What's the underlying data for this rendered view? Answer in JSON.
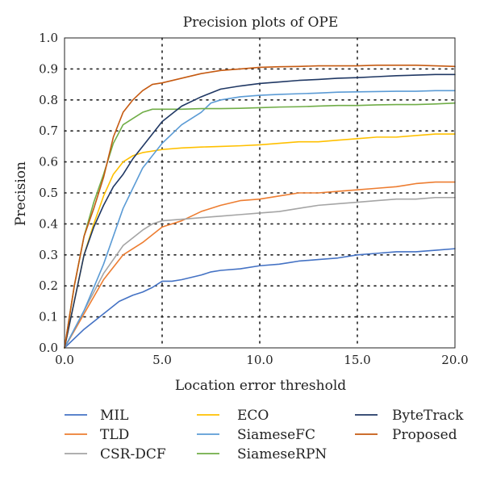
{
  "chart_data": {
    "type": "line",
    "title": "Precision plots of OPE",
    "xlabel": "Location error threshold",
    "ylabel": "Precision",
    "xlim": [
      0,
      20
    ],
    "ylim": [
      0,
      1
    ],
    "grid": true,
    "legend_position": "bottom",
    "x_ticks": [
      0,
      5,
      10,
      15,
      20
    ],
    "x_tick_labels": [
      "0.0",
      "5.0",
      "10.0",
      "15.0",
      "20.0"
    ],
    "y_ticks": [
      0,
      0.1,
      0.2,
      0.3,
      0.4,
      0.5,
      0.6,
      0.7,
      0.8,
      0.9,
      1.0
    ],
    "y_tick_labels": [
      "0.0",
      "0.1",
      "0.2",
      "0.3",
      "0.4",
      "0.5",
      "0.6",
      "0.7",
      "0.8",
      "0.9",
      "1.0"
    ],
    "series": [
      {
        "name": "MIL",
        "color": "#4472c4",
        "points": [
          [
            0,
            0
          ],
          [
            1,
            0.06
          ],
          [
            2,
            0.11
          ],
          [
            2.8,
            0.15
          ],
          [
            3.5,
            0.17
          ],
          [
            4,
            0.18
          ],
          [
            4.5,
            0.195
          ],
          [
            5,
            0.215
          ],
          [
            5.5,
            0.215
          ],
          [
            6,
            0.22
          ],
          [
            7,
            0.235
          ],
          [
            7.5,
            0.245
          ],
          [
            8,
            0.25
          ],
          [
            9,
            0.255
          ],
          [
            10,
            0.265
          ],
          [
            11,
            0.27
          ],
          [
            11.5,
            0.275
          ],
          [
            12,
            0.28
          ],
          [
            13,
            0.285
          ],
          [
            14,
            0.29
          ],
          [
            15,
            0.3
          ],
          [
            16,
            0.305
          ],
          [
            17,
            0.31
          ],
          [
            18,
            0.31
          ],
          [
            19,
            0.315
          ],
          [
            20,
            0.32
          ]
        ]
      },
      {
        "name": "TLD",
        "color": "#ed7d31",
        "points": [
          [
            0,
            0
          ],
          [
            1,
            0.11
          ],
          [
            2,
            0.22
          ],
          [
            3,
            0.3
          ],
          [
            4,
            0.34
          ],
          [
            5,
            0.39
          ],
          [
            6,
            0.41
          ],
          [
            7,
            0.44
          ],
          [
            8,
            0.46
          ],
          [
            9,
            0.475
          ],
          [
            10,
            0.48
          ],
          [
            11,
            0.49
          ],
          [
            12,
            0.5
          ],
          [
            13,
            0.5
          ],
          [
            14,
            0.505
          ],
          [
            15,
            0.51
          ],
          [
            16,
            0.515
          ],
          [
            17,
            0.52
          ],
          [
            18,
            0.53
          ],
          [
            19,
            0.535
          ],
          [
            20,
            0.535
          ]
        ]
      },
      {
        "name": "CSR-DCF",
        "color": "#a5a5a5",
        "points": [
          [
            0,
            0
          ],
          [
            1,
            0.12
          ],
          [
            2,
            0.24
          ],
          [
            3,
            0.33
          ],
          [
            4,
            0.38
          ],
          [
            4.5,
            0.4
          ],
          [
            5,
            0.41
          ],
          [
            6,
            0.415
          ],
          [
            7,
            0.42
          ],
          [
            8,
            0.425
          ],
          [
            9,
            0.43
          ],
          [
            10,
            0.435
          ],
          [
            11,
            0.44
          ],
          [
            12,
            0.45
          ],
          [
            13,
            0.46
          ],
          [
            14,
            0.465
          ],
          [
            15,
            0.47
          ],
          [
            16,
            0.475
          ],
          [
            17,
            0.48
          ],
          [
            18,
            0.48
          ],
          [
            19,
            0.485
          ],
          [
            20,
            0.485
          ]
        ]
      },
      {
        "name": "ECO",
        "color": "#ffc000",
        "points": [
          [
            0,
            0
          ],
          [
            0.5,
            0.15
          ],
          [
            1,
            0.3
          ],
          [
            1.5,
            0.4
          ],
          [
            2,
            0.49
          ],
          [
            2.5,
            0.56
          ],
          [
            3,
            0.6
          ],
          [
            3.5,
            0.62
          ],
          [
            4,
            0.63
          ],
          [
            5,
            0.64
          ],
          [
            6,
            0.645
          ],
          [
            7,
            0.648
          ],
          [
            8,
            0.65
          ],
          [
            9,
            0.652
          ],
          [
            10,
            0.655
          ],
          [
            11,
            0.66
          ],
          [
            12,
            0.665
          ],
          [
            13,
            0.665
          ],
          [
            14,
            0.67
          ],
          [
            15,
            0.675
          ],
          [
            16,
            0.68
          ],
          [
            17,
            0.68
          ],
          [
            18,
            0.685
          ],
          [
            19,
            0.69
          ],
          [
            20,
            0.69
          ]
        ]
      },
      {
        "name": "SiameseFC",
        "color": "#5b9bd5",
        "points": [
          [
            0,
            0
          ],
          [
            1,
            0.12
          ],
          [
            2,
            0.27
          ],
          [
            3,
            0.45
          ],
          [
            4,
            0.58
          ],
          [
            5,
            0.66
          ],
          [
            6,
            0.72
          ],
          [
            7,
            0.76
          ],
          [
            7.5,
            0.79
          ],
          [
            8,
            0.8
          ],
          [
            9,
            0.81
          ],
          [
            10,
            0.815
          ],
          [
            11,
            0.818
          ],
          [
            12,
            0.82
          ],
          [
            13,
            0.822
          ],
          [
            14,
            0.825
          ],
          [
            15,
            0.826
          ],
          [
            16,
            0.827
          ],
          [
            17,
            0.828
          ],
          [
            18,
            0.828
          ],
          [
            19,
            0.83
          ],
          [
            20,
            0.83
          ]
        ]
      },
      {
        "name": "SiameseRPN",
        "color": "#70ad47",
        "points": [
          [
            0,
            0
          ],
          [
            0.5,
            0.2
          ],
          [
            1,
            0.36
          ],
          [
            1.5,
            0.47
          ],
          [
            2,
            0.56
          ],
          [
            2.5,
            0.66
          ],
          [
            3,
            0.72
          ],
          [
            3.5,
            0.74
          ],
          [
            4,
            0.76
          ],
          [
            4.5,
            0.77
          ],
          [
            5,
            0.77
          ],
          [
            6,
            0.77
          ],
          [
            7,
            0.772
          ],
          [
            8,
            0.772
          ],
          [
            9,
            0.773
          ],
          [
            10,
            0.775
          ],
          [
            11,
            0.777
          ],
          [
            12,
            0.778
          ],
          [
            13,
            0.78
          ],
          [
            14,
            0.782
          ],
          [
            15,
            0.782
          ],
          [
            16,
            0.784
          ],
          [
            17,
            0.785
          ],
          [
            18,
            0.785
          ],
          [
            19,
            0.787
          ],
          [
            20,
            0.79
          ]
        ]
      },
      {
        "name": "ByteTrack",
        "color": "#203864",
        "points": [
          [
            0,
            0
          ],
          [
            0.5,
            0.15
          ],
          [
            1,
            0.3
          ],
          [
            1.5,
            0.39
          ],
          [
            2,
            0.46
          ],
          [
            2.5,
            0.52
          ],
          [
            3,
            0.56
          ],
          [
            3.5,
            0.61
          ],
          [
            4,
            0.65
          ],
          [
            4.5,
            0.69
          ],
          [
            5,
            0.73
          ],
          [
            6,
            0.78
          ],
          [
            7,
            0.81
          ],
          [
            8,
            0.835
          ],
          [
            9,
            0.845
          ],
          [
            10,
            0.853
          ],
          [
            11,
            0.858
          ],
          [
            12,
            0.863
          ],
          [
            13,
            0.866
          ],
          [
            14,
            0.87
          ],
          [
            15,
            0.872
          ],
          [
            16,
            0.875
          ],
          [
            17,
            0.878
          ],
          [
            18,
            0.88
          ],
          [
            19,
            0.882
          ],
          [
            20,
            0.882
          ]
        ]
      },
      {
        "name": "Proposed",
        "color": "#c55a11",
        "points": [
          [
            0,
            0
          ],
          [
            0.5,
            0.2
          ],
          [
            1,
            0.36
          ],
          [
            1.5,
            0.45
          ],
          [
            2,
            0.55
          ],
          [
            2.5,
            0.68
          ],
          [
            3,
            0.76
          ],
          [
            3.5,
            0.8
          ],
          [
            4,
            0.83
          ],
          [
            4.5,
            0.85
          ],
          [
            5,
            0.855
          ],
          [
            6,
            0.87
          ],
          [
            7,
            0.885
          ],
          [
            8,
            0.895
          ],
          [
            9,
            0.9
          ],
          [
            10,
            0.905
          ],
          [
            11,
            0.907
          ],
          [
            12,
            0.908
          ],
          [
            13,
            0.91
          ],
          [
            14,
            0.91
          ],
          [
            15,
            0.91
          ],
          [
            16,
            0.912
          ],
          [
            17,
            0.912
          ],
          [
            18,
            0.912
          ],
          [
            19,
            0.91
          ],
          [
            20,
            0.908
          ]
        ]
      }
    ]
  }
}
